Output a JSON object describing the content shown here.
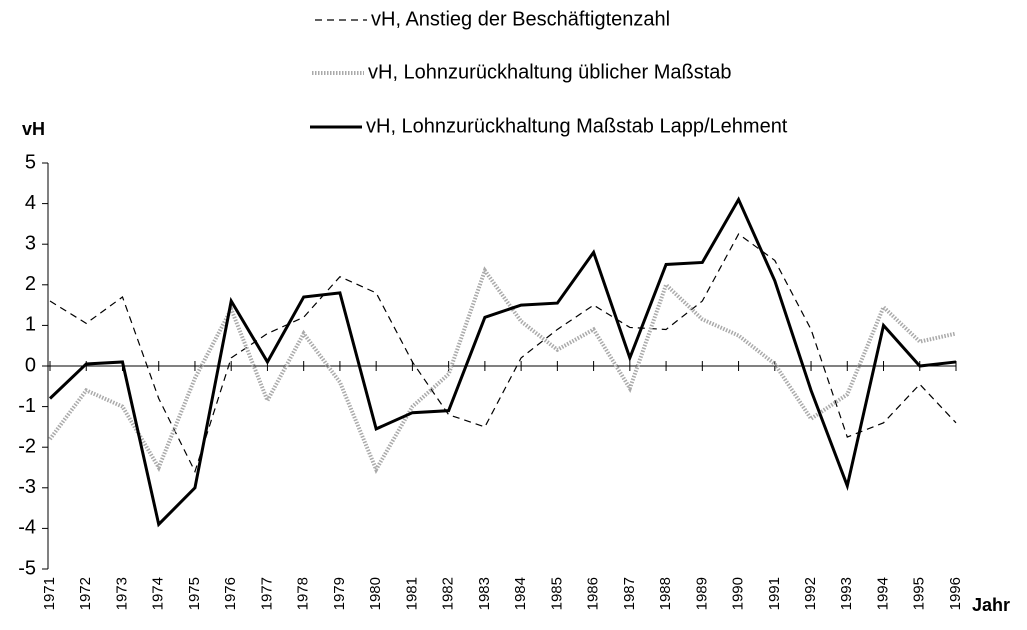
{
  "chart_data": {
    "type": "line",
    "y_label": "vH",
    "x_label": "Jahr",
    "categories": [
      "1971",
      "1972",
      "1973",
      "1974",
      "1975",
      "1976",
      "1977",
      "1978",
      "1979",
      "1980",
      "1981",
      "1982",
      "1983",
      "1984",
      "1985",
      "1986",
      "1987",
      "1988",
      "1989",
      "1990",
      "1991",
      "1992",
      "1993",
      "1994",
      "1995",
      "1996"
    ],
    "series": [
      {
        "name": "vH, Anstieg der Beschäftigtenzahl",
        "color": "#000000",
        "style": "dashed",
        "values": [
          1.6,
          1.05,
          1.7,
          -0.8,
          -2.6,
          0.2,
          0.8,
          1.2,
          2.2,
          1.8,
          0.1,
          -1.2,
          -1.5,
          0.2,
          0.9,
          1.5,
          0.95,
          0.9,
          1.6,
          3.25,
          2.6,
          0.9,
          -1.75,
          -1.4,
          -0.45,
          -1.4
        ]
      },
      {
        "name": "vH, Lohnzurückhaltung üblicher Maßstab",
        "color": "#aaaaaa",
        "style": "dotted",
        "values": [
          -1.8,
          -0.6,
          -1.0,
          -2.5,
          -0.3,
          1.4,
          -0.85,
          0.8,
          -0.4,
          -2.55,
          -1.0,
          -0.2,
          2.35,
          1.1,
          0.4,
          0.9,
          -0.55,
          2.0,
          1.15,
          0.75,
          0.05,
          -1.3,
          -0.7,
          1.45,
          0.6,
          0.8
        ]
      },
      {
        "name": "vH, Lohnzurückhaltung Maßstab Lapp/Lehment",
        "color": "#000000",
        "style": "solid",
        "values": [
          -0.8,
          0.05,
          0.1,
          -3.9,
          -3.0,
          1.6,
          0.1,
          1.7,
          1.8,
          -1.55,
          -1.15,
          -1.1,
          1.2,
          1.5,
          1.55,
          2.8,
          0.2,
          2.5,
          2.55,
          4.1,
          2.1,
          -0.6,
          -2.95,
          1.0,
          0.0,
          0.1
        ]
      }
    ],
    "ylim": [
      -5,
      5
    ],
    "yticks": [
      -5,
      -4,
      -3,
      -2,
      -1,
      0,
      1,
      2,
      3,
      4,
      5
    ],
    "grid": false
  }
}
